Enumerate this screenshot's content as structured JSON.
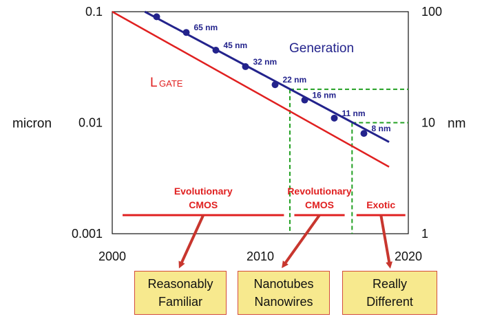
{
  "chart_data": {
    "type": "line",
    "x_axis": {
      "min": 2000,
      "max": 2020,
      "ticks": [
        2000,
        2010,
        2020
      ]
    },
    "y_axis_left": {
      "scale": "log",
      "label": "micron",
      "min": 0.001,
      "max": 0.1,
      "ticks": [
        {
          "value": 0.1,
          "label": "0.1"
        },
        {
          "value": 0.01,
          "label": "0.01"
        },
        {
          "value": 0.001,
          "label": "0.001"
        }
      ]
    },
    "y_axis_right": {
      "scale": "log",
      "label": "nm",
      "min": 1,
      "max": 100,
      "ticks": [
        {
          "value": 100,
          "label": "100"
        },
        {
          "value": 10,
          "label": "10"
        },
        {
          "value": 1,
          "label": "1"
        }
      ]
    },
    "series": [
      {
        "name": "Generation",
        "color": "#23238c",
        "x": [
          2003,
          2005,
          2007,
          2009,
          2011,
          2013,
          2015,
          2017
        ],
        "y": [
          90,
          65,
          45,
          32,
          22,
          16,
          11,
          8
        ],
        "point_labels": [
          "",
          "65 nm",
          "45 nm",
          "32 nm",
          "22 nm",
          "16 nm",
          "11 nm",
          "8 nm"
        ],
        "line_x": [
          2002.2,
          2018.7
        ],
        "line_y": [
          100,
          6.7
        ]
      },
      {
        "name": "L",
        "name_subscript": "GATE",
        "color": "#e02020",
        "x": [
          2000,
          2018.7
        ],
        "y": [
          100,
          4
        ]
      }
    ],
    "reference_lines": {
      "color": "#22a022",
      "style": "dashed",
      "vertical_x": [
        2012,
        2016.2
      ],
      "horizontal_y": [
        20,
        10
      ]
    },
    "regions": [
      {
        "label_lines": [
          "Evolutionary",
          "CMOS"
        ],
        "x_start": 2000.7,
        "x_end": 2011.6
      },
      {
        "label_lines": [
          "Revolutionary",
          "CMOS"
        ],
        "x_start": 2012.3,
        "x_end": 2015.7
      },
      {
        "label_lines": [
          "Exotic"
        ],
        "x_start": 2016.5,
        "x_end": 2019.8
      }
    ],
    "region_color": "#e02020"
  },
  "boxes": [
    {
      "line1": "Reasonably",
      "line2": "Familiar"
    },
    {
      "line1": "Nanotubes",
      "line2": "Nanowires"
    },
    {
      "line1": "Really",
      "line2": "Different"
    }
  ]
}
